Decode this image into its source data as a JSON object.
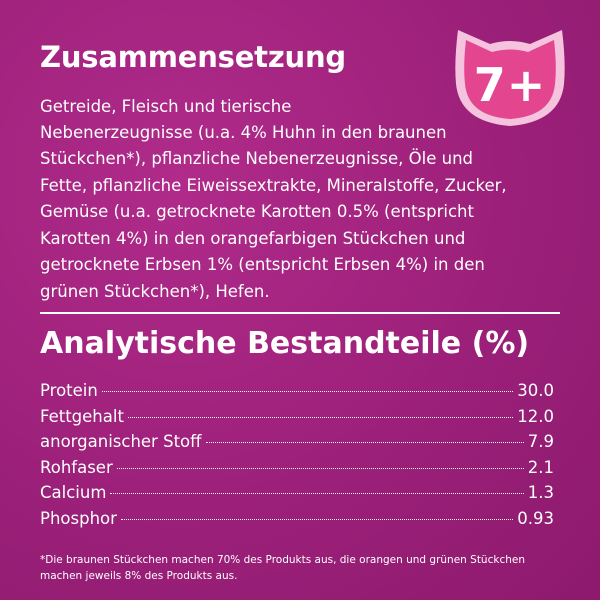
{
  "composition": {
    "title": "Zusammensetzung",
    "text_lines_short": [
      "Getreide, Fleisch und tierische",
      "Nebenerzeugnisse (u.a. 4% Huhn in den braunen"
    ],
    "text_lines": [
      "Stückchen*), pflanzliche Nebenerzeugnisse, Öle und",
      "Fette, pflanzliche Eiweissextrakte, Mineralstoffe, Zucker,",
      "Gemüse (u.a. getrocknete Karotten 0.5% (entspricht",
      "Karotten 4%) in den orangefarbigen Stückchen und",
      "getrocknete Erbsen 1% (entspricht Erbsen 4%) in den",
      "grünen Stückchen*), Hefen."
    ]
  },
  "badge": {
    "label": "7+",
    "shape": "cat-head-icon",
    "color_outer": "#f5c3dd",
    "color_inner": "#e4458f"
  },
  "analytics": {
    "title": "Analytische Bestandteile (%)",
    "rows": [
      {
        "label": "Protein",
        "value": "30.0"
      },
      {
        "label": "Fettgehalt",
        "value": "12.0"
      },
      {
        "label": "anorganischer Stoff",
        "value": "7.9"
      },
      {
        "label": "Rohfaser",
        "value": "2.1"
      },
      {
        "label": "Calcium",
        "value": "1.3"
      },
      {
        "label": "Phosphor",
        "value": "0.93"
      }
    ]
  },
  "footnote": "*Die braunen Stückchen machen 70% des Produkts aus, die orangen und grünen Stückchen machen jeweils 8% des Produkts aus.",
  "colors": {
    "background": "#a5237f",
    "text": "#ffffff"
  }
}
